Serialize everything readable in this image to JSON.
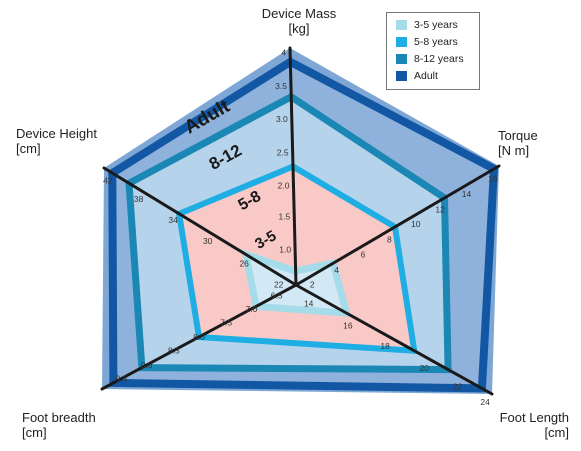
{
  "chart_data": {
    "type": "radar",
    "axes": [
      {
        "name": "Device Mass",
        "unit": "[kg]",
        "ticks": [
          "1.0",
          "1.5",
          "2.0",
          "2.5",
          "3.0",
          "3.5",
          "4"
        ]
      },
      {
        "name": "Torque",
        "unit": "[N m]",
        "ticks": [
          "2",
          "4",
          "6",
          "8",
          "10",
          "12",
          "14",
          "16"
        ]
      },
      {
        "name": "Foot Length",
        "unit": "[cm]",
        "ticks": [
          "14",
          "16",
          "18",
          "20",
          "22",
          "24"
        ]
      },
      {
        "name": "Foot breadth",
        "unit": "[cm]",
        "ticks": [
          "6.5",
          "7.0",
          "7.5",
          "8.0",
          "8.5",
          "9.0",
          "9.5"
        ]
      },
      {
        "name": "Device Height",
        "unit": "[cm]",
        "ticks": [
          "22",
          "26",
          "30",
          "34",
          "38",
          "42"
        ]
      }
    ],
    "series": [
      {
        "name": "3-5 years",
        "color": "#a5dcea",
        "values": [
          1.0,
          3,
          16,
          7.0,
          26
        ]
      },
      {
        "name": "5-8 years",
        "color": "#1eaee3",
        "values": [
          2.5,
          8,
          20,
          8.0,
          34
        ]
      },
      {
        "name": "8-12 years",
        "color": "#1b87b5",
        "values": [
          3.5,
          12,
          22,
          9.0,
          40
        ]
      },
      {
        "name": "Adult",
        "color": "#1257a3",
        "values": [
          4,
          16,
          24,
          9.5,
          42
        ]
      }
    ],
    "region_labels": [
      "Adult",
      "8-12",
      "5-8",
      "3-5"
    ],
    "legend_position": "top-right",
    "grid": false
  }
}
